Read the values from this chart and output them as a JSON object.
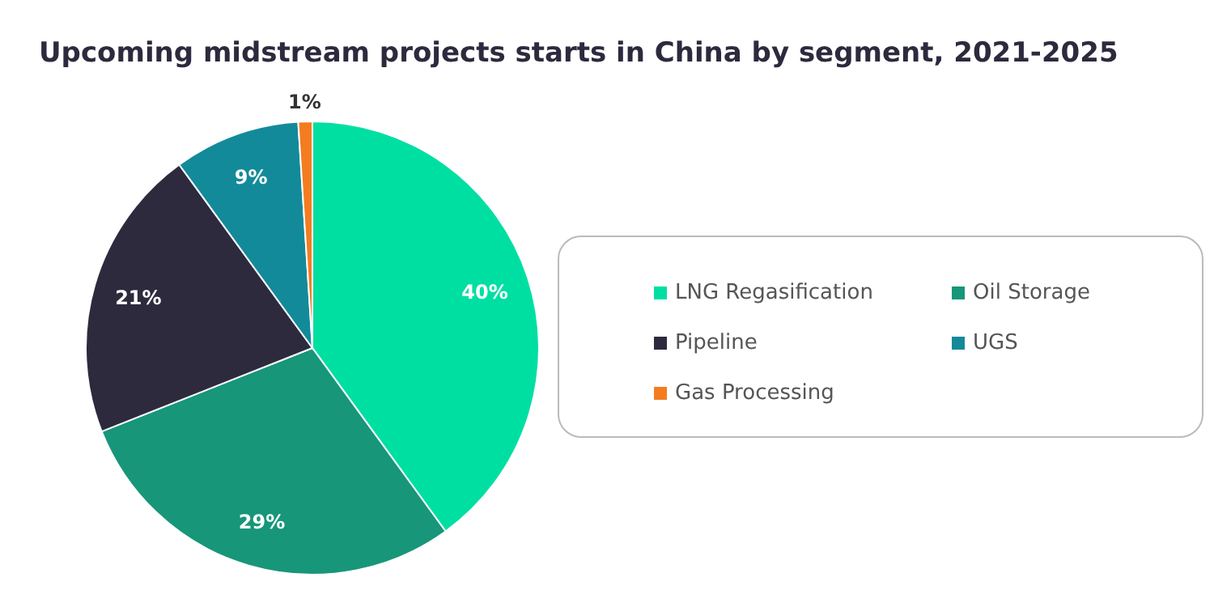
{
  "chart_data": {
    "type": "pie",
    "title": "Upcoming midstream projects starts in China by segment, 2021-2025",
    "categories": [
      "LNG Regasification",
      "Oil Storage",
      "Pipeline",
      "UGS",
      "Gas Processing"
    ],
    "values": [
      40,
      29,
      21,
      9,
      1
    ],
    "colors": [
      "#00dfa2",
      "#17967a",
      "#2d2a3e",
      "#138a9a",
      "#f47c20"
    ],
    "value_labels": [
      "40%",
      "29%",
      "21%",
      "9%",
      "1%"
    ],
    "legend": "right"
  }
}
